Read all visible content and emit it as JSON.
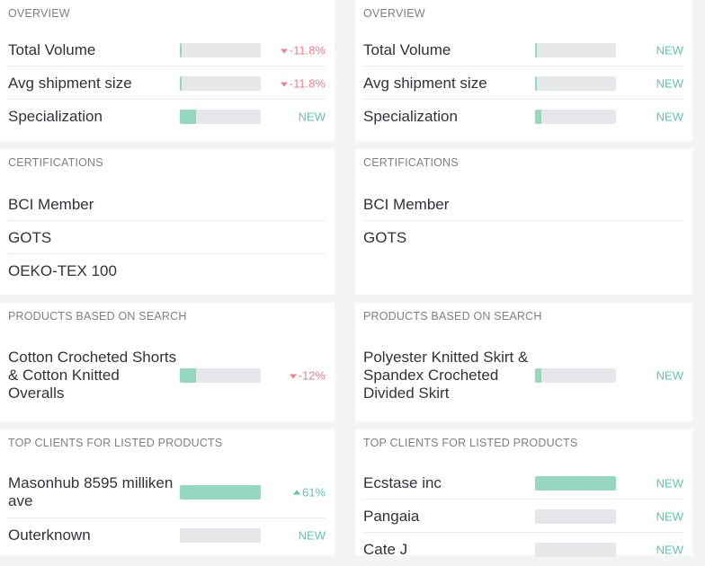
{
  "left": {
    "overview": {
      "title": "OVERVIEW",
      "rows": [
        {
          "label": "Total Volume",
          "bar": 0.02,
          "delta": "-11.8%",
          "trend": "down"
        },
        {
          "label": "Avg shipment size",
          "bar": 0.02,
          "delta": "-11.8%",
          "trend": "down"
        },
        {
          "label": "Specialization",
          "bar": 0.2,
          "delta": "NEW",
          "trend": "new"
        }
      ]
    },
    "certifications": {
      "title": "CERTIFICATIONS",
      "items": [
        "BCI Member",
        "GOTS",
        "OEKO-TEX 100"
      ]
    },
    "products": {
      "title": "PRODUCTS BASED ON SEARCH",
      "rows": [
        {
          "label": "Cotton Crocheted Shorts & Cotton Knitted Overalls",
          "bar": 0.2,
          "delta": "-12%",
          "trend": "down"
        }
      ]
    },
    "clients": {
      "title": "TOP CLIENTS FOR LISTED PRODUCTS",
      "rows": [
        {
          "label": "Masonhub 8595 milliken ave",
          "bar": 1.0,
          "delta": "61%",
          "trend": "up"
        },
        {
          "label": "Outerknown",
          "bar": 0.0,
          "delta": "NEW",
          "trend": "new"
        }
      ]
    }
  },
  "right": {
    "overview": {
      "title": "OVERVIEW",
      "rows": [
        {
          "label": "Total Volume",
          "bar": 0.02,
          "delta": "NEW",
          "trend": "new"
        },
        {
          "label": "Avg shipment size",
          "bar": 0.02,
          "delta": "NEW",
          "trend": "new"
        },
        {
          "label": "Specialization",
          "bar": 0.08,
          "delta": "NEW",
          "trend": "new"
        }
      ]
    },
    "certifications": {
      "title": "CERTIFICATIONS",
      "items": [
        "BCI Member",
        "GOTS"
      ]
    },
    "products": {
      "title": "PRODUCTS BASED ON SEARCH",
      "rows": [
        {
          "label": "Polyester Knitted Skirt & Spandex Crocheted Divided Skirt",
          "bar": 0.08,
          "delta": "NEW",
          "trend": "new"
        }
      ]
    },
    "clients": {
      "title": "TOP CLIENTS FOR LISTED PRODUCTS",
      "rows": [
        {
          "label": "Ecstase inc",
          "bar": 1.0,
          "delta": "NEW",
          "trend": "new"
        },
        {
          "label": "Pangaia",
          "bar": 0.0,
          "delta": "NEW",
          "trend": "new"
        },
        {
          "label": "Cate J",
          "bar": 0.0,
          "delta": "NEW",
          "trend": "new"
        }
      ]
    }
  }
}
